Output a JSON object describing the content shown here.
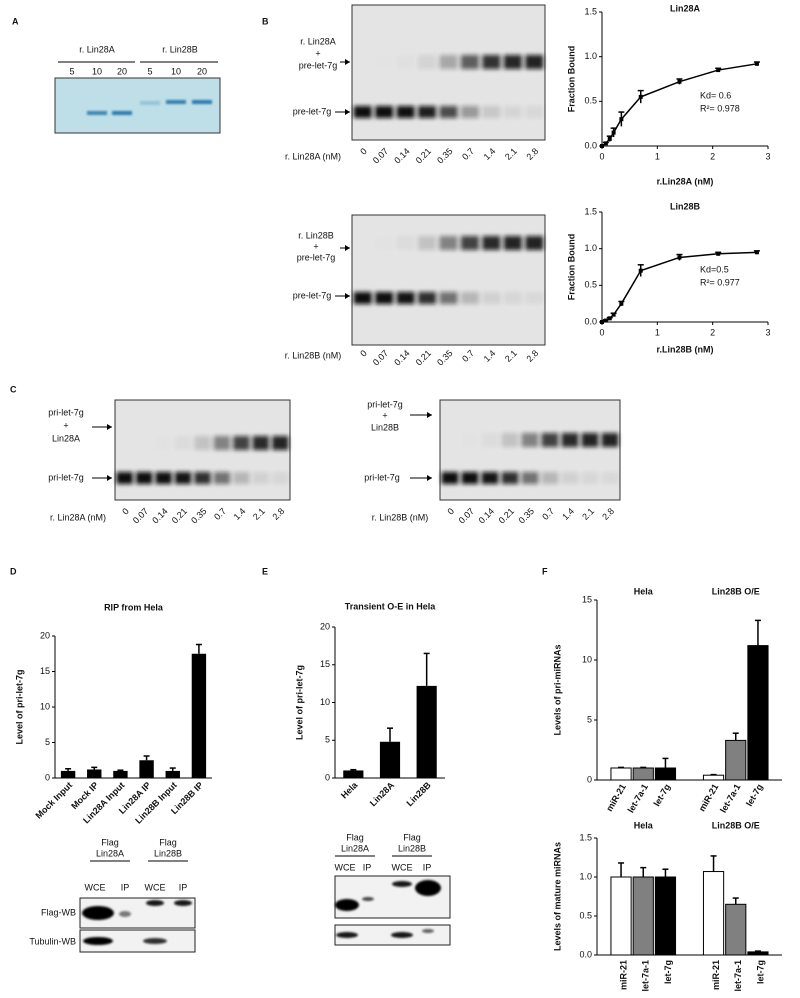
{
  "panel_labels": [
    "A",
    "B",
    "C",
    "D",
    "E",
    "F"
  ],
  "gels": {
    "A": {
      "groups": [
        "r. Lin28A",
        "r. Lin28B"
      ],
      "lanes": [
        "5",
        "10",
        "20",
        "5",
        "10",
        "20"
      ]
    },
    "B1": {
      "upper": [
        "r. Lin28A",
        "+",
        "pre-let-7g"
      ],
      "lower": "pre-let-7g",
      "axis": "r. Lin28A (nM)",
      "lanes": [
        "0",
        "0.07",
        "0.14",
        "0.21",
        "0.35",
        "0.7",
        "1.4",
        "2.1",
        "2.8"
      ]
    },
    "B2": {
      "upper": [
        "r. Lin28B",
        "+",
        "pre-let-7g"
      ],
      "lower": "pre-let-7g",
      "axis": "r. Lin28B (nM)",
      "lanes": [
        "0",
        "0.07",
        "0.14",
        "0.21",
        "0.35",
        "0.7",
        "1.4",
        "2.1",
        "2.8"
      ]
    },
    "C1": {
      "upper": [
        "pri-let-7g",
        "+",
        "Lin28A"
      ],
      "lower": "pri-let-7g",
      "axis": "r. Lin28A (nM)",
      "lanes": [
        "0",
        "0.07",
        "0.14",
        "0.21",
        "0.35",
        "0.7",
        "1.4",
        "2.1",
        "2.8"
      ]
    },
    "C2": {
      "upper": [
        "pri-let-7g",
        "+",
        "Lin28B"
      ],
      "lower": "pri-let-7g",
      "axis": "r. Lin28B (nM)",
      "lanes": [
        "0",
        "0.07",
        "0.14",
        "0.21",
        "0.35",
        "0.7",
        "1.4",
        "2.1",
        "2.8"
      ]
    },
    "D": {
      "headers": [
        [
          "Flag",
          "Lin28A"
        ],
        [
          "Flag",
          "Lin28B"
        ]
      ],
      "lanes": [
        "WCE",
        "IP",
        "WCE",
        "IP"
      ],
      "rows": [
        "Flag-WB",
        "Tubulin-WB"
      ]
    },
    "E": {
      "headers": [
        [
          "Flag",
          "Lin28A"
        ],
        [
          "Flag",
          "Lin28B"
        ]
      ],
      "lanes": [
        "WCE",
        "IP",
        "WCE",
        "IP"
      ]
    }
  },
  "chart_data": [
    {
      "type": "line",
      "title": "Lin28A",
      "x_label": "r.Lin28A (nM)",
      "y_label": "Fraction Bound",
      "x": [
        0,
        0.07,
        0.14,
        0.21,
        0.35,
        0.7,
        1.4,
        2.1,
        2.8
      ],
      "series": [
        {
          "color": "#000000",
          "values": [
            0,
            0.03,
            0.08,
            0.15,
            0.3,
            0.55,
            0.72,
            0.85,
            0.92
          ],
          "errors": [
            0,
            0.01,
            0.03,
            0.05,
            0.08,
            0.07,
            0.03,
            0.02,
            0.02
          ]
        }
      ],
      "xlim": [
        0,
        3
      ],
      "ylim": [
        0,
        1.5
      ],
      "xticks": [
        0,
        1,
        2,
        3
      ],
      "yticks": [
        {
          "value": 0,
          "label": "0.0"
        },
        {
          "value": 0.5,
          "label": "0.5"
        },
        {
          "value": 1,
          "label": "1.0"
        },
        {
          "value": 1.5,
          "label": "1.5"
        }
      ],
      "annotations": [
        "Kd= 0.6",
        "R²= 0.978"
      ]
    },
    {
      "type": "line",
      "title": "Lin28B",
      "x_label": "r.Lin28B (nM)",
      "y_label": "Fraction Bound",
      "x": [
        0,
        0.07,
        0.14,
        0.21,
        0.35,
        0.7,
        1.4,
        2.1,
        2.8
      ],
      "series": [
        {
          "color": "#000000",
          "values": [
            0,
            0.02,
            0.05,
            0.1,
            0.25,
            0.7,
            0.88,
            0.93,
            0.95
          ],
          "errors": [
            0,
            0.01,
            0.01,
            0.02,
            0.03,
            0.08,
            0.04,
            0.02,
            0.02
          ]
        }
      ],
      "xlim": [
        0,
        3
      ],
      "ylim": [
        0,
        1.5
      ],
      "xticks": [
        0,
        1,
        2,
        3
      ],
      "yticks": [
        {
          "value": 0,
          "label": "0.0"
        },
        {
          "value": 0.5,
          "label": "0.5"
        },
        {
          "value": 1,
          "label": "1.0"
        },
        {
          "value": 1.5,
          "label": "1.5"
        }
      ],
      "annotations": [
        "Kd=0.5",
        "R²= 0.977"
      ]
    },
    {
      "type": "bar",
      "title": "RIP from Hela",
      "y_label": "Level of pri-let-7g",
      "categories": [
        "Mock Input",
        "Mock IP",
        "Lin28A Input",
        "Lin28A IP",
        "Lin28B Input",
        "Lin28B IP"
      ],
      "values": [
        1,
        1.2,
        1,
        2.5,
        1,
        17.5
      ],
      "errors": [
        0.3,
        0.3,
        0.1,
        0.6,
        0.4,
        1.3
      ],
      "color": "#000000",
      "ylim": [
        0,
        20
      ],
      "yticks": [
        0,
        5,
        10,
        15,
        20
      ]
    },
    {
      "type": "bar",
      "title": "Transient O-E in Hela",
      "y_label": "Level of pri-let-7g",
      "categories": [
        "Hela",
        "Lin28A",
        "Lin28B"
      ],
      "values": [
        1,
        4.8,
        12.2
      ],
      "errors": [
        0.1,
        1.8,
        4.3
      ],
      "color": "#000000",
      "ylim": [
        0,
        20
      ],
      "yticks": [
        0,
        5,
        10,
        15,
        20
      ]
    },
    {
      "type": "grouped_bar",
      "y_label": "Levels of pri-miRNAs",
      "groups": [
        "Hela",
        "Lin28B O/E"
      ],
      "series": [
        {
          "name": "miR-21",
          "color": "#ffffff",
          "values": [
            1,
            0.4
          ],
          "errors": [
            0.05,
            0.05
          ]
        },
        {
          "name": "let-7a-1",
          "color": "#808080",
          "values": [
            1,
            3.3
          ],
          "errors": [
            0.05,
            0.6
          ]
        },
        {
          "name": "let-7g",
          "color": "#000000",
          "values": [
            1,
            11.2
          ],
          "errors": [
            0.8,
            2.1
          ]
        }
      ],
      "ylim": [
        0,
        15
      ],
      "yticks": [
        0,
        5,
        10,
        15
      ]
    },
    {
      "type": "grouped_bar",
      "y_label": "Levels of mature miRNAs",
      "groups": [
        "Hela",
        "Lin28B O/E"
      ],
      "series": [
        {
          "name": "miR-21",
          "color": "#ffffff",
          "values": [
            1.0,
            1.07
          ],
          "errors": [
            0.18,
            0.2
          ]
        },
        {
          "name": "let-7a-1",
          "color": "#808080",
          "values": [
            1.0,
            0.65
          ],
          "errors": [
            0.12,
            0.08
          ]
        },
        {
          "name": "let-7g",
          "color": "#000000",
          "values": [
            1.0,
            0.04
          ],
          "errors": [
            0.1,
            0.01
          ]
        }
      ],
      "ylim": [
        0,
        1.5
      ],
      "yticks": [
        {
          "value": 0,
          "label": "0.0"
        },
        {
          "value": 0.5,
          "label": "0.5"
        },
        {
          "value": 1,
          "label": "1.0"
        },
        {
          "value": 1.5,
          "label": "1.5"
        }
      ]
    }
  ]
}
